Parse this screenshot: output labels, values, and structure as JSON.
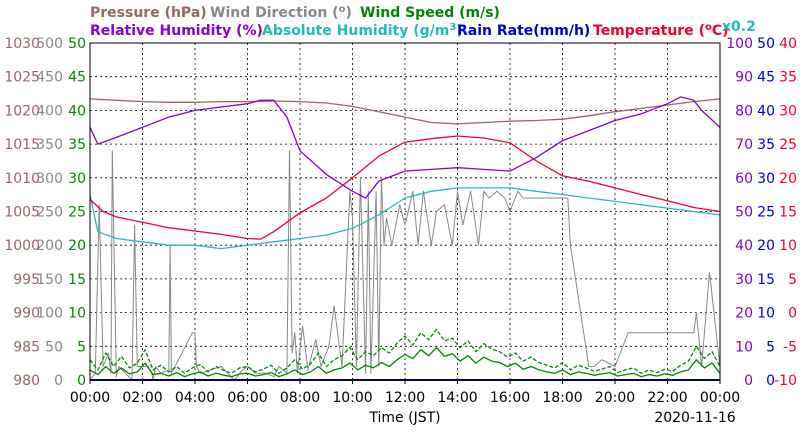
{
  "chart_data": {
    "type": "line",
    "date": "2020-11-16",
    "xlabel": "Time (JST)",
    "x_ticks": [
      "00:00",
      "02:00",
      "04:00",
      "06:00",
      "08:00",
      "10:00",
      "12:00",
      "14:00",
      "16:00",
      "18:00",
      "20:00",
      "22:00",
      "00:00"
    ],
    "xlim_hours": [
      0,
      24
    ],
    "grid": true,
    "legend": {
      "row1": [
        {
          "text": "Pressure (hPa)",
          "color": "#996666"
        },
        {
          "text": "Wind Direction (",
          "sup": "o",
          "after": ")",
          "color": "#888888"
        },
        {
          "text": "Wind Speed (m/s)",
          "color": "#008800"
        }
      ],
      "row2": [
        {
          "text": "Relative Humidity (%)",
          "color": "#8800cc"
        },
        {
          "text": "Absolute Humidity (g/m",
          "sup": "3",
          "after": ")",
          "color": "#22bbbb"
        },
        {
          "text": "Rain Rate(mm/h)",
          "color": "#0000cc"
        },
        {
          "text": "Temperature (",
          "sup": "o",
          "after": "C)",
          "color": "#ee0033"
        },
        {
          "text": "x0.2",
          "color": "#22bbbb"
        }
      ]
    },
    "axes": {
      "pressure": {
        "color": "#996666",
        "ticks": [
          "1030",
          "1025",
          "1020",
          "1015",
          "1010",
          "1005",
          "1000",
          "995",
          "990",
          "985",
          "980"
        ],
        "range": [
          980,
          1030
        ]
      },
      "wind_direction": {
        "color": "#888888",
        "ticks": [
          "500",
          "450",
          "400",
          "350",
          "300",
          "250",
          "200",
          "150",
          "100",
          "50",
          "0"
        ],
        "range": [
          0,
          500
        ]
      },
      "wind_speed": {
        "color": "#008800",
        "ticks": [
          "50",
          "45",
          "40",
          "35",
          "30",
          "25",
          "20",
          "15",
          "10",
          "5",
          "0"
        ],
        "range": [
          0,
          50
        ]
      },
      "humidity": {
        "color": "#8800cc",
        "ticks": [
          "100",
          "90",
          "80",
          "70",
          "60",
          "50",
          "40",
          "30",
          "20",
          "10",
          "0"
        ],
        "range": [
          0,
          100
        ]
      },
      "rain_rate": {
        "color": "#0000cc",
        "ticks": [
          "50",
          "45",
          "40",
          "35",
          "30",
          "25",
          "20",
          "15",
          "10",
          "5",
          "0"
        ],
        "range": [
          0,
          50
        ]
      },
      "temperature": {
        "color": "#ee0033",
        "ticks": [
          "40",
          "35",
          "30",
          "25",
          "20",
          "15",
          "10",
          "5",
          "0",
          "-5",
          "-10"
        ],
        "range": [
          -10,
          40
        ]
      }
    },
    "series": [
      {
        "name": "Pressure (hPa)",
        "axis": "pressure",
        "color": "#996666",
        "x": [
          0,
          1,
          2,
          3,
          4,
          5,
          6,
          7,
          8,
          9,
          10,
          11,
          12,
          13,
          14,
          15,
          16,
          17,
          18,
          19,
          20,
          21,
          22,
          23,
          24
        ],
        "values": [
          1021.7,
          1021.5,
          1021.3,
          1021.2,
          1021.2,
          1021.3,
          1021.3,
          1021.4,
          1021.3,
          1021.1,
          1020.6,
          1019.8,
          1019.0,
          1018.2,
          1018.0,
          1018.2,
          1018.4,
          1018.5,
          1018.7,
          1019.2,
          1019.8,
          1020.3,
          1020.8,
          1021.3,
          1021.7
        ]
      },
      {
        "name": "Relative Humidity (%)",
        "axis": "humidity",
        "color": "#8800cc",
        "x": [
          0,
          0.3,
          1,
          2,
          3,
          4,
          5,
          6,
          6.5,
          7,
          7.5,
          8,
          9,
          10,
          10.5,
          11,
          12,
          13,
          14,
          15,
          16,
          17,
          18,
          19,
          20,
          21,
          22,
          22.5,
          23,
          23.3,
          24
        ],
        "values": [
          75,
          70,
          72,
          75,
          78,
          80,
          81,
          82,
          83,
          83,
          78,
          68,
          61,
          56,
          54,
          59,
          62,
          62.5,
          63,
          62.5,
          62,
          66,
          71,
          74,
          77,
          79,
          82,
          84,
          83,
          80,
          75
        ]
      },
      {
        "name": "Absolute Humidity (g/m3)",
        "axis": "humidity",
        "color": "#22bbbb",
        "x": [
          0,
          0.3,
          1,
          2,
          3,
          4,
          5,
          6,
          7,
          8,
          9,
          10,
          11,
          12,
          13,
          14,
          15,
          16,
          17,
          18,
          19,
          20,
          21,
          22,
          23,
          24
        ],
        "values": [
          55,
          44,
          42,
          41,
          40,
          40,
          39,
          40,
          41,
          42,
          43,
          45,
          49,
          54,
          56,
          57,
          57,
          57,
          56,
          55,
          54,
          53,
          52,
          51,
          50,
          49
        ]
      },
      {
        "name": "Temperature (°C)",
        "axis": "temperature",
        "color": "#ee0033",
        "x": [
          0,
          0.5,
          1,
          2,
          3,
          4,
          5,
          6,
          6.5,
          7,
          8,
          9,
          10,
          11,
          12,
          13,
          14,
          15,
          16,
          17,
          18,
          19,
          20,
          21,
          22,
          23,
          24
        ],
        "values": [
          16.8,
          15,
          14.2,
          13.4,
          12.6,
          12.1,
          11.6,
          11.0,
          10.9,
          12,
          14.8,
          17,
          20,
          23.2,
          25.3,
          25.8,
          26.2,
          25.9,
          25.2,
          22.5,
          20.3,
          19.5,
          18.5,
          17.5,
          16.6,
          15.6,
          15
        ]
      },
      {
        "name": "Wind Direction (°)",
        "axis": "wind_direction",
        "color": "#888888",
        "x": [
          0,
          0.2,
          0.35,
          0.5,
          0.7,
          0.8,
          0.85,
          1.0,
          1.1,
          1.6,
          1.7,
          1.8,
          2.2,
          2.35,
          2.4,
          2.5,
          2.7,
          3.0,
          3.05,
          3.1,
          3.9,
          4.0,
          4.05,
          4.2,
          5.0,
          5.5,
          5.8,
          6.0,
          6.3,
          6.7,
          7.0,
          7.2,
          7.5,
          7.6,
          7.7,
          7.8,
          7.9,
          8.1,
          8.3,
          8.6,
          8.8,
          9.1,
          9.3,
          9.6,
          9.9,
          10.0,
          10.15,
          10.3,
          10.5,
          10.6,
          10.7,
          10.9,
          11.0,
          11.1,
          11.2,
          11.3,
          11.5,
          11.8,
          12.0,
          12.3,
          12.5,
          12.7,
          13.0,
          13.2,
          13.5,
          13.8,
          14.0,
          14.2,
          14.5,
          14.8,
          15.0,
          15.2,
          15.5,
          15.8,
          16.0,
          16.3,
          16.5,
          16.8,
          17.0,
          17.3,
          17.6,
          17.9,
          18.0,
          18.1,
          18.2,
          18.3,
          19.0,
          19.2,
          19.5,
          20.0,
          20.5,
          21.0,
          21.5,
          22.0,
          22.5,
          22.9,
          23.0,
          23.1,
          23.3,
          23.6,
          24
        ],
        "values": [
          0,
          10,
          260,
          20,
          40,
          10,
          340,
          5,
          20,
          0,
          230,
          20,
          20,
          10,
          0,
          20,
          10,
          15,
          200,
          10,
          70,
          70,
          20,
          10,
          20,
          0,
          15,
          20,
          10,
          10,
          5,
          20,
          10,
          340,
          40,
          70,
          10,
          80,
          15,
          60,
          20,
          50,
          110,
          20,
          280,
          240,
          20,
          300,
          10,
          280,
          10,
          280,
          20,
          300,
          200,
          240,
          200,
          260,
          230,
          280,
          200,
          280,
          200,
          250,
          260,
          200,
          280,
          230,
          280,
          200,
          280,
          270,
          280,
          270,
          250,
          280,
          270,
          270,
          270,
          270,
          270,
          270,
          270,
          270,
          270,
          200,
          20,
          20,
          30,
          20,
          70,
          70,
          70,
          70,
          70,
          70,
          70,
          100,
          20,
          160,
          20
        ]
      },
      {
        "name": "Wind Speed (m/s)",
        "axis": "wind_speed",
        "color": "#008800",
        "x": [
          0,
          0.3,
          0.6,
          0.9,
          1.2,
          1.5,
          1.8,
          2.1,
          2.4,
          2.7,
          3,
          3.3,
          3.6,
          3.9,
          4.2,
          4.5,
          4.8,
          5.1,
          5.4,
          5.7,
          6,
          6.3,
          6.6,
          6.9,
          7.2,
          7.5,
          7.8,
          8.1,
          8.4,
          8.7,
          9,
          9.3,
          9.6,
          9.9,
          10.2,
          10.5,
          10.8,
          11.1,
          11.4,
          11.7,
          12,
          12.3,
          12.6,
          12.9,
          13.2,
          13.5,
          13.8,
          14.1,
          14.4,
          14.7,
          15,
          15.3,
          15.6,
          15.9,
          16.2,
          16.5,
          16.8,
          17.1,
          17.4,
          17.7,
          18,
          18.3,
          18.6,
          18.9,
          19.2,
          19.5,
          19.8,
          20.1,
          20.4,
          20.7,
          21,
          21.3,
          21.6,
          21.9,
          22.2,
          22.5,
          22.8,
          23.1,
          23.4,
          23.7,
          24
        ],
        "values": [
          1.5,
          0.8,
          2.0,
          1.0,
          1.8,
          0.9,
          1.2,
          2.5,
          0.8,
          1.0,
          0.6,
          1.1,
          0.5,
          0.9,
          1.2,
          0.6,
          1.0,
          0.7,
          0.5,
          0.9,
          1.0,
          0.6,
          0.8,
          1.1,
          0.5,
          0.9,
          1.5,
          0.8,
          1.2,
          2.0,
          1.0,
          1.5,
          1.8,
          2.5,
          1.5,
          2.2,
          1.8,
          2.6,
          2.0,
          3.0,
          3.8,
          3.2,
          4.5,
          3.6,
          4.8,
          3.5,
          3.9,
          2.8,
          3.6,
          2.5,
          3.4,
          2.8,
          2.6,
          2.0,
          2.5,
          1.6,
          2.0,
          1.5,
          1.2,
          1.0,
          1.5,
          0.8,
          1.2,
          1.0,
          0.7,
          0.9,
          1.1,
          0.6,
          0.8,
          1.0,
          0.5,
          0.8,
          0.6,
          0.9,
          0.7,
          1.2,
          1.5,
          3.0,
          1.8,
          2.5,
          1.0
        ]
      },
      {
        "name": "Wind Speed max",
        "axis": "wind_speed",
        "color": "#008800",
        "style": "dashed",
        "x": [
          0,
          0.3,
          0.6,
          0.9,
          1.2,
          1.5,
          1.8,
          2.1,
          2.4,
          2.7,
          3,
          3.3,
          3.6,
          3.9,
          4.2,
          4.5,
          4.8,
          5.1,
          5.4,
          5.7,
          6,
          6.3,
          6.6,
          6.9,
          7.2,
          7.5,
          7.8,
          8.1,
          8.4,
          8.7,
          9,
          9.3,
          9.6,
          9.9,
          10.2,
          10.5,
          10.8,
          11.1,
          11.4,
          11.7,
          12,
          12.3,
          12.6,
          12.9,
          13.2,
          13.5,
          13.8,
          14.1,
          14.4,
          14.7,
          15,
          15.3,
          15.6,
          15.9,
          16.2,
          16.5,
          16.8,
          17.1,
          17.4,
          17.7,
          18,
          18.3,
          18.6,
          18.9,
          19.2,
          19.5,
          19.8,
          20.1,
          20.4,
          20.7,
          21,
          21.3,
          21.6,
          21.9,
          22.2,
          22.5,
          22.8,
          23.1,
          23.4,
          23.7,
          24
        ],
        "values": [
          3.0,
          1.5,
          4.0,
          2.0,
          3.5,
          1.8,
          2.5,
          4.5,
          1.5,
          2.2,
          1.2,
          2.0,
          1.0,
          1.8,
          2.3,
          1.2,
          2.0,
          1.4,
          1.0,
          1.8,
          2.0,
          1.2,
          1.6,
          2.2,
          1.0,
          1.8,
          3.0,
          1.6,
          2.4,
          4.0,
          2.0,
          3.0,
          3.6,
          4.8,
          3.0,
          4.2,
          3.6,
          4.8,
          4.0,
          5.5,
          6.5,
          5.2,
          7.0,
          6.0,
          7.5,
          5.8,
          6.2,
          4.8,
          5.8,
          4.2,
          5.4,
          4.6,
          4.2,
          3.4,
          4.0,
          2.8,
          3.4,
          2.6,
          2.2,
          1.8,
          2.6,
          1.5,
          2.2,
          1.8,
          1.3,
          1.6,
          2.0,
          1.1,
          1.5,
          1.8,
          1.0,
          1.5,
          1.1,
          1.6,
          1.3,
          2.2,
          2.8,
          5.0,
          3.2,
          4.2,
          2.0
        ]
      },
      {
        "name": "Rain Rate(mm/h)",
        "axis": "rain_rate",
        "color": "#0000cc",
        "x": [
          0,
          24
        ],
        "values": [
          0,
          0
        ]
      }
    ]
  }
}
